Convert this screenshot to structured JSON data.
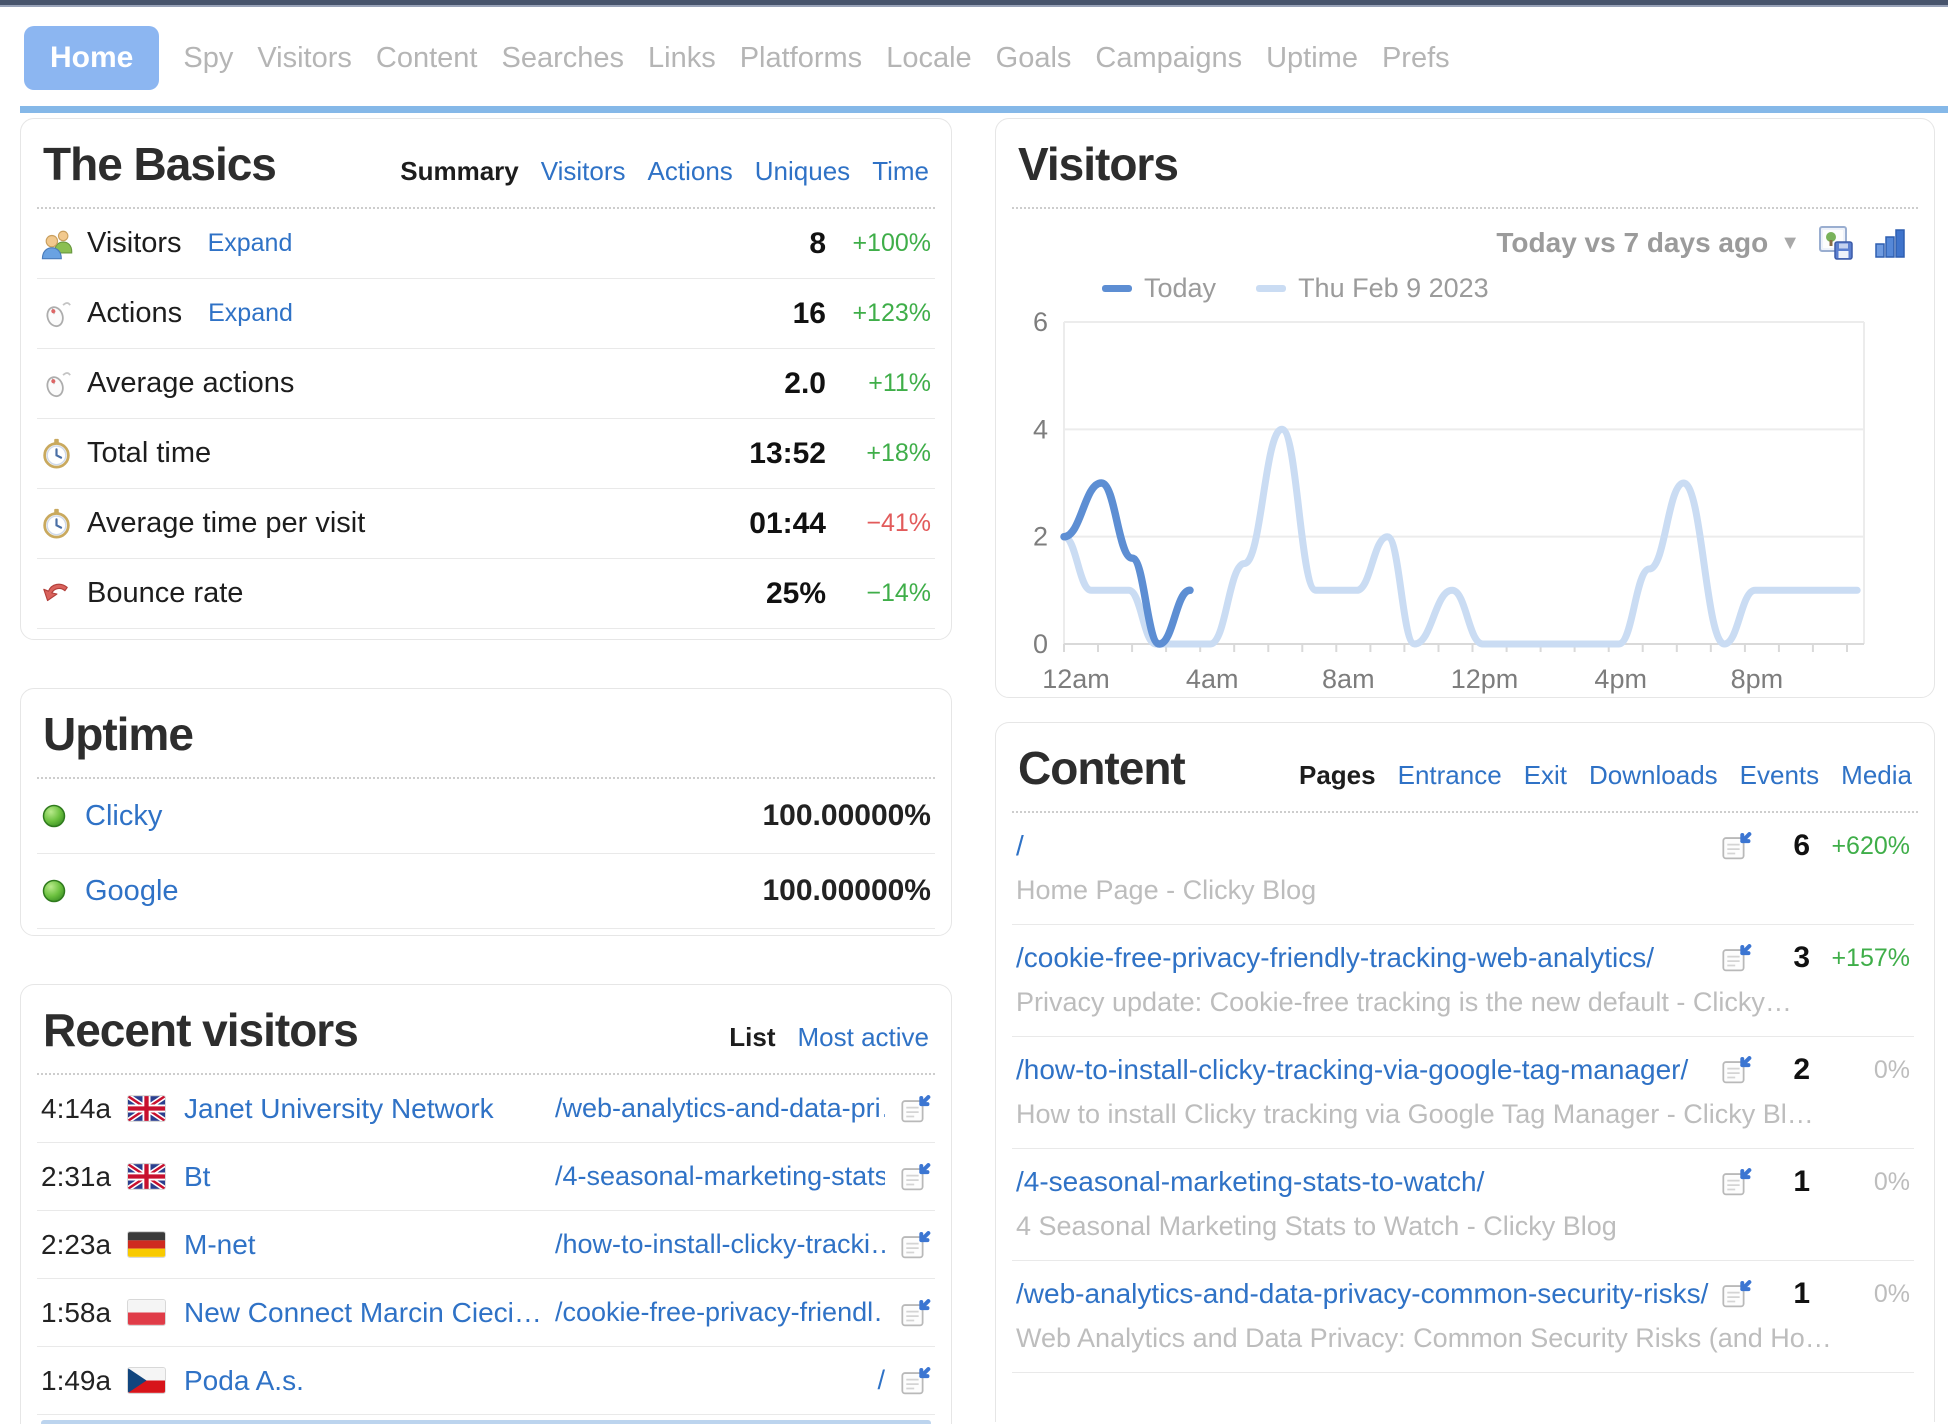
{
  "nav": {
    "items": [
      {
        "label": "Home",
        "active": true
      },
      {
        "label": "Spy"
      },
      {
        "label": "Visitors"
      },
      {
        "label": "Content"
      },
      {
        "label": "Searches"
      },
      {
        "label": "Links"
      },
      {
        "label": "Platforms"
      },
      {
        "label": "Locale"
      },
      {
        "label": "Goals"
      },
      {
        "label": "Campaigns"
      },
      {
        "label": "Uptime"
      },
      {
        "label": "Prefs"
      }
    ]
  },
  "basics": {
    "title": "The Basics",
    "tabs": [
      {
        "label": "Summary",
        "active": true
      },
      {
        "label": "Visitors"
      },
      {
        "label": "Actions"
      },
      {
        "label": "Uniques"
      },
      {
        "label": "Time"
      }
    ],
    "rows": [
      {
        "icon": "visitors-icon",
        "label": "Visitors",
        "expand": "Expand",
        "value": "8",
        "delta": "+100%",
        "trend": "good"
      },
      {
        "icon": "mouse-icon",
        "label": "Actions",
        "expand": "Expand",
        "value": "16",
        "delta": "+123%",
        "trend": "good"
      },
      {
        "icon": "mouse-icon",
        "label": "Average actions",
        "expand": null,
        "value": "2.0",
        "delta": "+11%",
        "trend": "good"
      },
      {
        "icon": "clock-icon",
        "label": "Total time",
        "expand": null,
        "value": "13:52",
        "delta": "+18%",
        "trend": "good"
      },
      {
        "icon": "clock-icon",
        "label": "Average time per visit",
        "expand": null,
        "value": "01:44",
        "delta": "−41%",
        "trend": "bad"
      },
      {
        "icon": "bounce-icon",
        "label": "Bounce rate",
        "expand": null,
        "value": "25%",
        "delta": "−14%",
        "trend": "good"
      }
    ]
  },
  "uptime": {
    "title": "Uptime",
    "rows": [
      {
        "icon": "status-up-icon",
        "label": "Clicky",
        "value": "100.00000%"
      },
      {
        "icon": "status-up-icon",
        "label": "Google",
        "value": "100.00000%"
      }
    ]
  },
  "recent_visitors": {
    "title": "Recent visitors",
    "tabs": [
      {
        "label": "List",
        "active": true
      },
      {
        "label": "Most active"
      }
    ],
    "rows": [
      {
        "time": "4:14a",
        "flag": "gb",
        "name": "Janet University Network",
        "page": "/web-analytics-and-data-pri…"
      },
      {
        "time": "2:31a",
        "flag": "gb",
        "name": "Bt",
        "page": "/4-seasonal-marketing-stats…"
      },
      {
        "time": "2:23a",
        "flag": "de",
        "name": "M-net",
        "page": "/how-to-install-clicky-tracki…"
      },
      {
        "time": "1:58a",
        "flag": "pl",
        "name": "New Connect Marcin Cieci…",
        "page": "/cookie-free-privacy-friendl…"
      },
      {
        "time": "1:49a",
        "flag": "cz",
        "name": "Poda A.s.",
        "page": "/"
      }
    ]
  },
  "visitors_panel": {
    "title": "Visitors",
    "range_label": "Today vs 7 days ago"
  },
  "chart_data": {
    "type": "line",
    "title": "Visitors",
    "x_axis": {
      "unit": "hour",
      "range": [
        0,
        23.5
      ],
      "tick_hours": [
        0,
        4,
        8,
        12,
        16,
        20
      ],
      "tick_labels": [
        "12am",
        "4am",
        "8am",
        "12pm",
        "4pm",
        "8pm"
      ]
    },
    "y_axis": {
      "range": [
        0,
        6
      ],
      "ticks": [
        0,
        2,
        4,
        6
      ]
    },
    "grid": true,
    "legend_position": "top-left",
    "series": [
      {
        "name": "Today",
        "color": "#5d8ed3",
        "points": [
          [
            0,
            2
          ],
          [
            1.1,
            3
          ],
          [
            2,
            1.6
          ],
          [
            2.8,
            0
          ],
          [
            3.7,
            1
          ]
        ]
      },
      {
        "name": "Thu Feb 9 2023",
        "color": "#cadcf3",
        "points": [
          [
            0,
            2
          ],
          [
            0.8,
            1
          ],
          [
            1.9,
            1
          ],
          [
            2.7,
            0
          ],
          [
            4.3,
            0
          ],
          [
            5.3,
            1.5
          ],
          [
            6.4,
            4
          ],
          [
            7.4,
            1
          ],
          [
            8.6,
            1
          ],
          [
            9.5,
            2
          ],
          [
            10.3,
            0
          ],
          [
            11.4,
            1
          ],
          [
            12.3,
            0
          ],
          [
            16.3,
            0
          ],
          [
            17.2,
            1.4
          ],
          [
            18.2,
            3
          ],
          [
            19.4,
            0
          ],
          [
            20.3,
            1
          ],
          [
            23.3,
            1
          ]
        ]
      }
    ]
  },
  "content": {
    "title": "Content",
    "tabs": [
      {
        "label": "Pages",
        "active": true
      },
      {
        "label": "Entrance"
      },
      {
        "label": "Exit"
      },
      {
        "label": "Downloads"
      },
      {
        "label": "Events"
      },
      {
        "label": "Media"
      }
    ],
    "rows": [
      {
        "url": "/",
        "subtitle": "Home Page - Clicky Blog",
        "value": "6",
        "delta": "+620%",
        "trend": "good"
      },
      {
        "url": "/cookie-free-privacy-friendly-tracking-web-analytics/",
        "subtitle": "Privacy update: Cookie-free tracking is the new default - Clicky…",
        "value": "3",
        "delta": "+157%",
        "trend": "good"
      },
      {
        "url": "/how-to-install-clicky-tracking-via-google-tag-manager/",
        "subtitle": "How to install Clicky tracking via Google Tag Manager - Clicky Bl…",
        "value": "2",
        "delta": "0%",
        "trend": "flat"
      },
      {
        "url": "/4-seasonal-marketing-stats-to-watch/",
        "subtitle": "4 Seasonal Marketing Stats to Watch - Clicky Blog",
        "value": "1",
        "delta": "0%",
        "trend": "flat"
      },
      {
        "url": "/web-analytics-and-data-privacy-common-security-risks/",
        "subtitle": "Web Analytics and Data Privacy: Common Security Risks (and Ho…",
        "value": "1",
        "delta": "0%",
        "trend": "flat"
      }
    ]
  },
  "colors": {
    "accent_blue": "#8cb6f1",
    "link_blue": "#2f72c6",
    "positive_green": "#3fae49",
    "negative_red": "#e25b5b",
    "neutral_gray": "#bdbdbd",
    "topbar_navy": "#47546c",
    "rule_blue": "#85b8e8",
    "today_line": "#5d8ed3",
    "compare_line": "#cadcf3"
  }
}
